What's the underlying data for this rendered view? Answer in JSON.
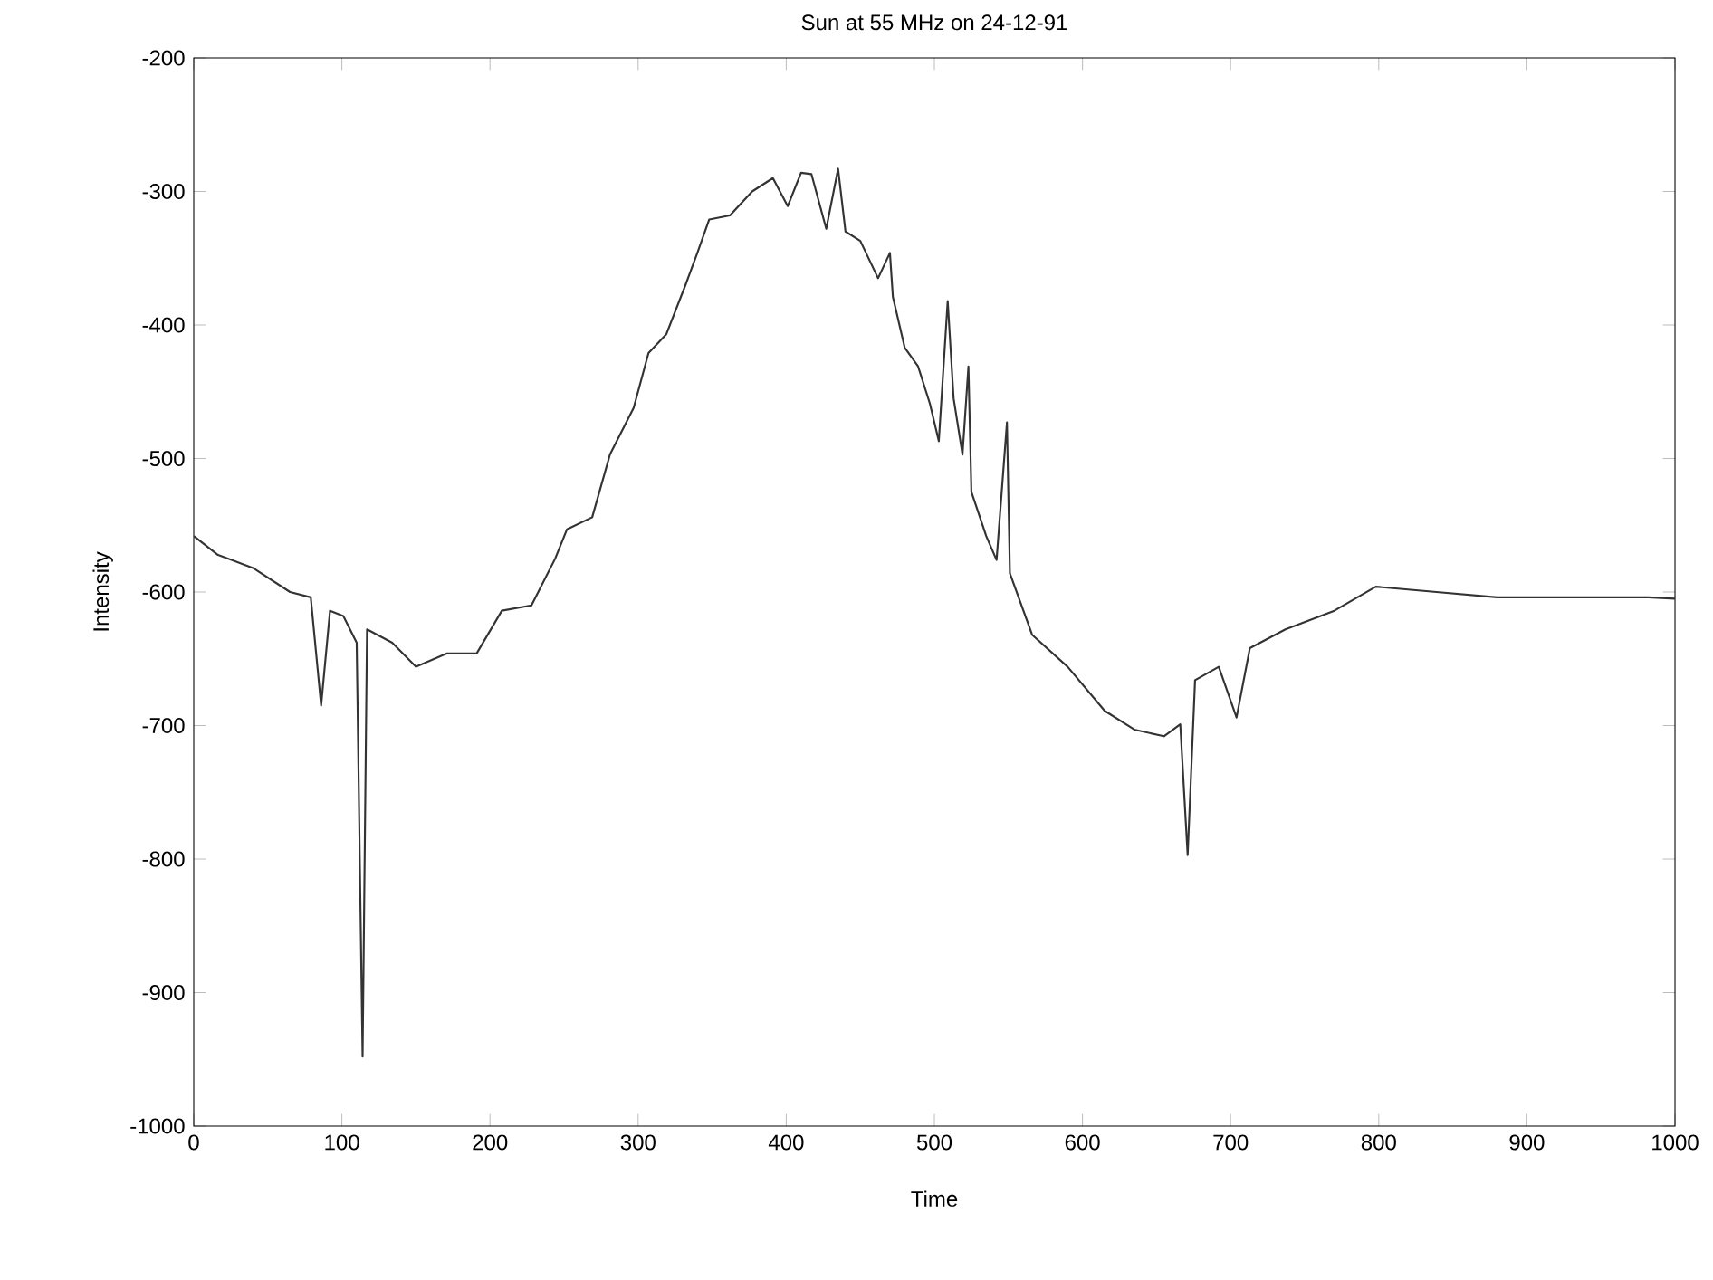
{
  "chart_data": {
    "type": "line",
    "title": "Sun at 55 MHz on 24-12-91",
    "xlabel": "Time",
    "ylabel": "Intensity",
    "x": [
      0,
      16,
      40,
      65,
      79,
      86,
      92,
      101,
      110,
      114,
      117,
      134,
      150,
      171,
      191,
      208,
      228,
      244,
      252,
      269,
      281,
      297,
      307,
      319,
      332,
      340,
      348,
      362,
      377,
      391,
      401,
      410,
      417,
      427,
      435,
      440,
      450,
      462,
      470,
      472,
      480,
      489,
      497,
      503,
      509,
      513,
      519,
      523,
      525,
      535,
      542,
      549,
      551,
      566,
      590,
      615,
      635,
      655,
      666,
      671,
      676,
      692,
      704,
      713,
      737,
      770,
      798,
      839,
      880,
      920,
      982,
      1000
    ],
    "series": [
      {
        "color": "#333333",
        "values": [
          -558,
          -572,
          -582,
          -600,
          -604,
          -685,
          -614,
          -618,
          -638,
          -948,
          -628,
          -638,
          -656,
          -646,
          -646,
          -614,
          -610,
          -575,
          -553,
          -544,
          -497,
          -462,
          -421,
          -407,
          -370,
          -346,
          -321,
          -318,
          -300,
          -290,
          -311,
          -286,
          -287,
          -328,
          -283,
          -330,
          -337,
          -365,
          -346,
          -379,
          -417,
          -431,
          -459,
          -487,
          -382,
          -455,
          -497,
          -431,
          -525,
          -558,
          -576,
          -473,
          -586,
          -632,
          -656,
          -689,
          -703,
          -708,
          -699,
          -797,
          -666,
          -656,
          -694,
          -642,
          -628,
          -614,
          -596,
          -600,
          -604,
          -604,
          -604,
          -605
        ]
      }
    ],
    "xlim": [
      0,
      1000
    ],
    "ylim": [
      -1000,
      -200
    ],
    "xticks": [
      0,
      100,
      200,
      300,
      400,
      500,
      600,
      700,
      800,
      900,
      1000
    ],
    "yticks": [
      -1000,
      -900,
      -800,
      -700,
      -600,
      -500,
      -400,
      -300,
      -200
    ],
    "grid": false,
    "marker": "none",
    "line_style": "solid"
  }
}
